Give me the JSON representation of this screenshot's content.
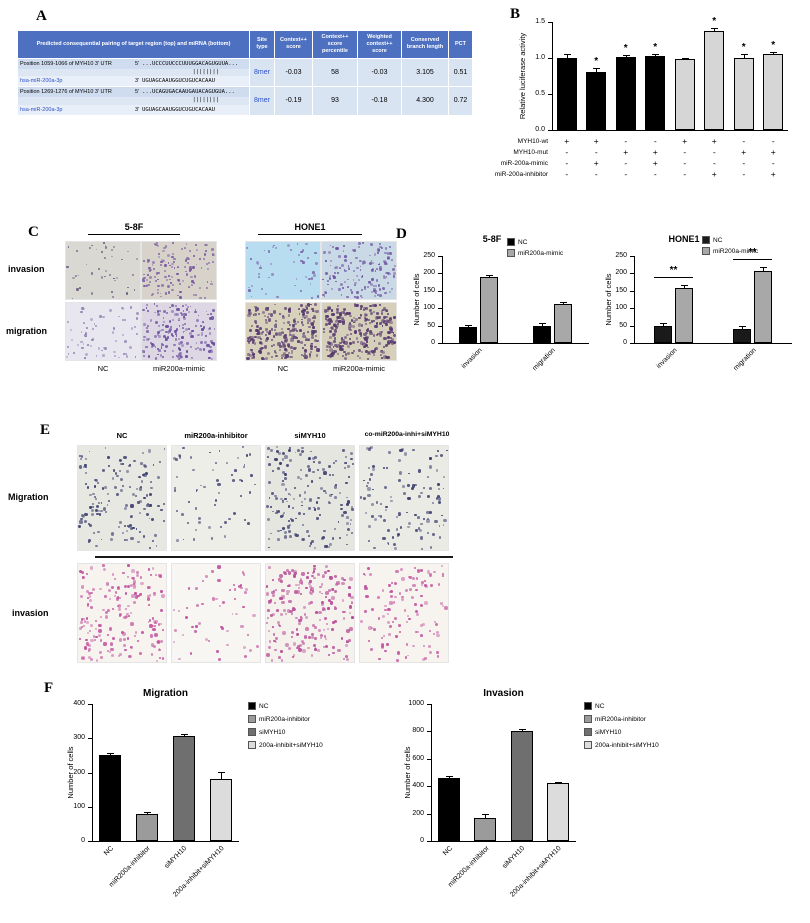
{
  "panelA": {
    "label": "A",
    "table": {
      "headers": [
        "Predicted consequential pairing of target region (top) and miRNA (bottom)",
        "Site type",
        "Context++ score",
        "Context++ score percentile",
        "Weighted context++ score",
        "Conserved branch length",
        "PCT"
      ],
      "rows": [
        {
          "position": "Position 1059-1066 of MYH10 3' UTR",
          "five_prime": "5'",
          "target_seq": "...UCCCUUCCCUUUGGACAGUGUUA...",
          "pairing": "||||||||",
          "mirna": "hsa-miR-200a-3p",
          "three_prime": "3'",
          "mirna_seq": "UGUAGCAAUGGUCUGUCACAAU",
          "site_type": "8mer",
          "context_score": "-0.03",
          "percentile": "58",
          "weighted_score": "-0.03",
          "branch_length": "3.105",
          "pct": "0.51"
        },
        {
          "position": "Position 1269-1276 of MYH10 3' UTR",
          "five_prime": "5'",
          "target_seq": "...UCAGUGACAAUGAUACAGUGUA...",
          "pairing": "||||||||",
          "mirna": "hsa-miR-200a-3p",
          "three_prime": "3'",
          "mirna_seq": "UGUAGCAAUGGUCUGUCACAAU",
          "site_type": "8mer",
          "context_score": "-0.19",
          "percentile": "93",
          "weighted_score": "-0.18",
          "branch_length": "4.300",
          "pct": "0.72"
        }
      ]
    }
  },
  "panelB": {
    "label": "B",
    "chart": {
      "type": "bar",
      "ylabel": "Relative luciferase activity",
      "ylim": [
        0,
        1.5
      ],
      "yticks": [
        0,
        0.5,
        1.0,
        1.5
      ],
      "bars": [
        {
          "value": 1.0,
          "error": 0.06,
          "color": "#000000",
          "sig": ""
        },
        {
          "value": 0.81,
          "error": 0.05,
          "color": "#000000",
          "sig": "*"
        },
        {
          "value": 1.02,
          "error": 0.02,
          "color": "#000000",
          "sig": "*"
        },
        {
          "value": 1.03,
          "error": 0.02,
          "color": "#000000",
          "sig": "*"
        },
        {
          "value": 0.99,
          "error": 0.015,
          "color": "#d6d6d6",
          "sig": ""
        },
        {
          "value": 1.38,
          "error": 0.03,
          "color": "#d6d6d6",
          "sig": "*"
        },
        {
          "value": 1.0,
          "error": 0.06,
          "color": "#d6d6d6",
          "sig": "*"
        },
        {
          "value": 1.05,
          "error": 0.04,
          "color": "#d6d6d6",
          "sig": "*"
        }
      ]
    },
    "matrix": {
      "rows": [
        {
          "label": "MYH10-wt",
          "values": [
            "+",
            "+",
            "-",
            "-",
            "+",
            "+",
            "-",
            "-"
          ]
        },
        {
          "label": "MYH10-mut",
          "values": [
            "-",
            "-",
            "+",
            "+",
            "-",
            "-",
            "+",
            "+"
          ]
        },
        {
          "label": "miR-200a-mimic",
          "values": [
            "-",
            "+",
            "-",
            "+",
            "-",
            "-",
            "-",
            "-"
          ]
        },
        {
          "label": "miR-200a-inhibitor",
          "values": [
            "-",
            "-",
            "-",
            "-",
            "-",
            "+",
            "-",
            "+"
          ]
        }
      ]
    }
  },
  "panelC": {
    "label": "C",
    "groups": [
      "5-8F",
      "HONE1"
    ],
    "row_labels": [
      "invasion",
      "migration"
    ],
    "col_labels": [
      "NC",
      "miR200a-mimic",
      "NC",
      "miR200a-mimic"
    ],
    "images": [
      {
        "name": "5-8F invasion NC",
        "bg": "#d9d8d2",
        "color": "#6b5b80",
        "dots": 40,
        "min": 1.0,
        "max": 2.6,
        "seed": 11
      },
      {
        "name": "5-8F invasion miR200a-mimic",
        "bg": "#d7d3ca",
        "color": "#7a5aa2",
        "dots": 135,
        "min": 1.4,
        "max": 3.0,
        "seed": 12
      },
      {
        "name": "HONE1 invasion NC",
        "bg": "#b8dcf0",
        "color": "#7a66a8",
        "dots": 48,
        "min": 1.4,
        "max": 3.0,
        "seed": 13
      },
      {
        "name": "HONE1 invasion miR200a-mimic",
        "bg": "#c9d9e5",
        "color": "#6d50a0",
        "dots": 150,
        "min": 1.4,
        "max": 3.2,
        "seed": 14
      },
      {
        "name": "5-8F migration NC",
        "bg": "#e8e6ee",
        "color": "#8d7cb0",
        "dots": 65,
        "min": 1.4,
        "max": 3.0,
        "seed": 15
      },
      {
        "name": "5-8F migration miR200a-mimic",
        "bg": "#dcd7e2",
        "color": "#6b4d9e",
        "dots": 180,
        "min": 1.4,
        "max": 3.2,
        "seed": 16
      },
      {
        "name": "HONE1 migration NC",
        "bg": "#d8d1bc",
        "color": "#56396f",
        "dots": 240,
        "min": 1.8,
        "max": 3.6,
        "seed": 17
      },
      {
        "name": "HONE1 migration miR200a-mimic",
        "bg": "#d6cfba",
        "color": "#56396f",
        "dots": 250,
        "min": 1.8,
        "max": 3.6,
        "seed": 18
      }
    ]
  },
  "panelD": {
    "label": "D",
    "charts": [
      {
        "title": "5-8F",
        "type": "bar",
        "ylabel": "Number of cells",
        "ylim": [
          0,
          250
        ],
        "yticks": [
          0,
          50,
          100,
          150,
          200,
          250
        ],
        "categories": [
          "invasion",
          "migration"
        ],
        "series": [
          {
            "name": "NC",
            "color": "#000000",
            "values": [
              45,
              48
            ],
            "errors": [
              8,
              10
            ]
          },
          {
            "name": "miR200a-mimic",
            "color": "#a8a8a8",
            "values": [
              190,
              112
            ],
            "errors": [
              6,
              5
            ]
          }
        ],
        "group_sig": [
          "",
          ""
        ],
        "legend": [
          {
            "label": "NC",
            "color": "#000000"
          },
          {
            "label": "miR200a-mimic",
            "color": "#a8a8a8"
          }
        ]
      },
      {
        "title": "HONE1",
        "type": "bar",
        "ylabel": "Number of cells",
        "ylim": [
          0,
          250
        ],
        "yticks": [
          0,
          50,
          100,
          150,
          200,
          250
        ],
        "categories": [
          "invasion",
          "migration"
        ],
        "series": [
          {
            "name": "NC",
            "color": "#1a1a1a",
            "values": [
              50,
              40
            ],
            "errors": [
              7,
              8
            ]
          },
          {
            "name": "miR200a-mimic",
            "color": "#a8a8a8",
            "values": [
              158,
              207
            ],
            "errors": [
              8,
              10
            ]
          }
        ],
        "group_sig": [
          "**",
          "**"
        ],
        "legend": [
          {
            "label": "NC",
            "color": "#1a1a1a"
          },
          {
            "label": "miR200a-mimic",
            "color": "#a8a8a8"
          }
        ]
      }
    ]
  },
  "panelE": {
    "label": "E",
    "col_labels": [
      "NC",
      "miR200a-inhibitor",
      "siMYH10",
      "co-miR200a-inhi+siMYH10"
    ],
    "row_labels": [
      "Migration",
      "invasion"
    ],
    "images": [
      {
        "name": "Migration NC",
        "bg": "#e6e8e1",
        "color": "#3f4070",
        "dots": 150,
        "min": 1.6,
        "max": 3.4,
        "seed": 21
      },
      {
        "name": "Migration miR200a-inhibitor",
        "bg": "#edeee8",
        "color": "#3f4070",
        "dots": 60,
        "min": 1.6,
        "max": 3.2,
        "seed": 22
      },
      {
        "name": "Migration siMYH10",
        "bg": "#e4e6df",
        "color": "#3f4070",
        "dots": 175,
        "min": 1.6,
        "max": 3.4,
        "seed": 23
      },
      {
        "name": "Migration co-miR200a-inhi+siMYH10",
        "bg": "#e9ebe4",
        "color": "#3f4070",
        "dots": 115,
        "min": 1.6,
        "max": 3.4,
        "seed": 24
      },
      {
        "name": "invasion NC",
        "bg": "#f7f4f0",
        "color": "#c355a0",
        "dots": 190,
        "min": 1.8,
        "max": 3.6,
        "seed": 25
      },
      {
        "name": "invasion miR200a-inhibitor",
        "bg": "#f8f6f2",
        "color": "#c355a0",
        "dots": 55,
        "min": 1.8,
        "max": 3.4,
        "seed": 26
      },
      {
        "name": "invasion siMYH10",
        "bg": "#f5f2ed",
        "color": "#b84d98",
        "dots": 215,
        "min": 1.8,
        "max": 3.8,
        "seed": 27
      },
      {
        "name": "invasion co-miR200a-inhi+siMYH10",
        "bg": "#f7f4ef",
        "color": "#c355a0",
        "dots": 120,
        "min": 1.8,
        "max": 3.6,
        "seed": 28
      }
    ]
  },
  "panelF": {
    "label": "F",
    "charts": [
      {
        "title": "Migration",
        "type": "bar",
        "ylabel": "Number of cells",
        "ylim": [
          0,
          400
        ],
        "yticks": [
          0,
          100,
          200,
          300,
          400
        ],
        "bars": [
          {
            "label": "NC",
            "value": 250,
            "error": 8,
            "color": "#000000",
            "sig": ""
          },
          {
            "label": "miR200a-inhibitor",
            "value": 80,
            "error": 6,
            "color": "#9b9b9b",
            "sig": ""
          },
          {
            "label": "siMYH10",
            "value": 307,
            "error": 4,
            "color": "#6f6f6f",
            "sig": ""
          },
          {
            "label": "200a-inhibit+siMYH10",
            "value": 180,
            "error": 22,
            "color": "#dcdcdc",
            "sig": ""
          }
        ],
        "legend": [
          {
            "label": "NC",
            "color": "#000000"
          },
          {
            "label": "miR200a-inhibitor",
            "color": "#9b9b9b"
          },
          {
            "label": "siMYH10",
            "color": "#6f6f6f"
          },
          {
            "label": "200a-inhibit+siMYH10",
            "color": "#dcdcdc"
          }
        ]
      },
      {
        "title": "Invasion",
        "type": "bar",
        "ylabel": "Number of cells",
        "ylim": [
          0,
          1000
        ],
        "yticks": [
          0,
          200,
          400,
          600,
          800,
          1000
        ],
        "bars": [
          {
            "label": "NC",
            "value": 460,
            "error": 15,
            "color": "#000000",
            "sig": ""
          },
          {
            "label": "miR200a-inhibitor",
            "value": 170,
            "error": 30,
            "color": "#9b9b9b",
            "sig": ""
          },
          {
            "label": "siMYH10",
            "value": 800,
            "error": 15,
            "color": "#6f6f6f",
            "sig": ""
          },
          {
            "label": "200a-inhibit+siMYH10",
            "value": 420,
            "error": 12,
            "color": "#dcdcdc",
            "sig": ""
          }
        ],
        "legend": [
          {
            "label": "NC",
            "color": "#000000"
          },
          {
            "label": "miR200a-inhibitor",
            "color": "#9b9b9b"
          },
          {
            "label": "siMYH10",
            "color": "#6f6f6f"
          },
          {
            "label": "200a-inhibit+siMYH10",
            "color": "#dcdcdc"
          }
        ]
      }
    ]
  }
}
